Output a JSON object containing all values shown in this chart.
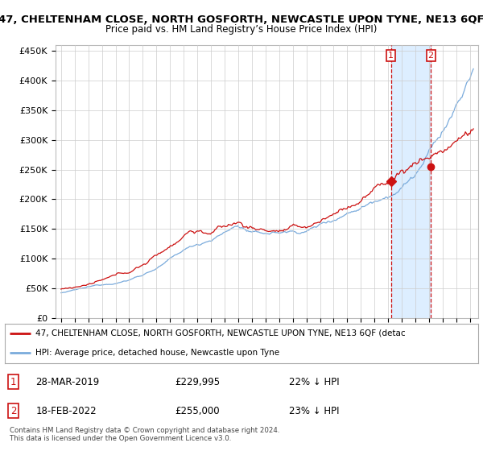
{
  "title_line1": "47, CHELTENHAM CLOSE, NORTH GOSFORTH, NEWCASTLE UPON TYNE, NE13 6QF",
  "title_line2": "Price paid vs. HM Land Registry’s House Price Index (HPI)",
  "ylim": [
    0,
    460000
  ],
  "yticks": [
    0,
    50000,
    100000,
    150000,
    200000,
    250000,
    300000,
    350000,
    400000,
    450000
  ],
  "ytick_labels": [
    "£0",
    "£50K",
    "£100K",
    "£150K",
    "£200K",
    "£250K",
    "£300K",
    "£350K",
    "£400K",
    "£450K"
  ],
  "hpi_color": "#7aabdc",
  "price_color": "#cc1111",
  "sale1_t": 2019.21,
  "sale1_price": 229995,
  "sale2_t": 2022.12,
  "sale2_price": 255000,
  "shade_color": "#ddeeff",
  "legend_label1": "47, CHELTENHAM CLOSE, NORTH GOSFORTH, NEWCASTLE UPON TYNE, NE13 6QF (detac",
  "legend_label2": "HPI: Average price, detached house, Newcastle upon Tyne",
  "sale1_date": "28-MAR-2019",
  "sale1_pct": "22% ↓ HPI",
  "sale2_date": "18-FEB-2022",
  "sale2_pct": "23% ↓ HPI",
  "footer1": "Contains HM Land Registry data © Crown copyright and database right 2024.",
  "footer2": "This data is licensed under the Open Government Licence v3.0.",
  "fig_width": 6.0,
  "fig_height": 5.6,
  "dpi": 100
}
